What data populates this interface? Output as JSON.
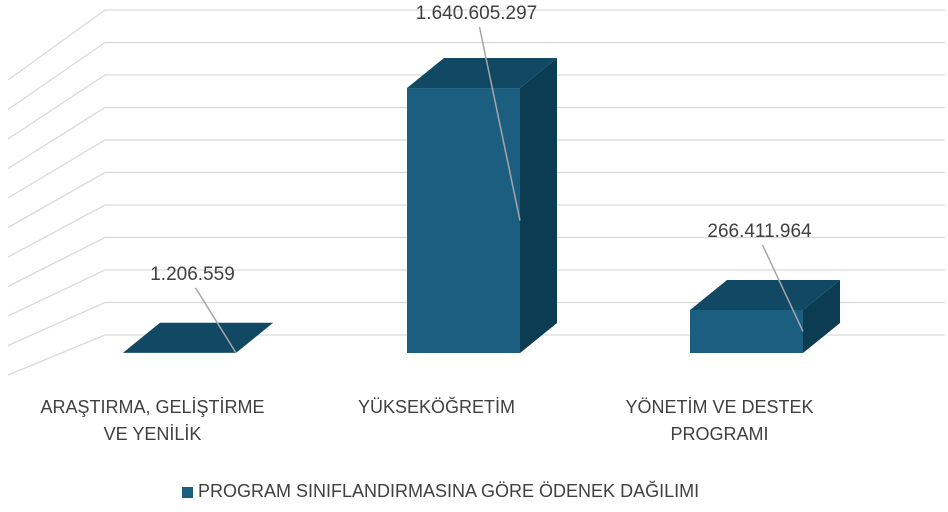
{
  "chart_data": {
    "type": "bar3d",
    "categories": [
      "ARAŞTIRMA, GELİŞTİRME VE YENİLİK",
      "YÜKSEKÖĞRETİM",
      "YÖNETİM VE DESTEK PROGRAMI"
    ],
    "series": [
      {
        "name": "PROGRAM SINIFLANDIRMASINA GÖRE ÖDENEK DAĞILIMI",
        "color": "#1b5e80",
        "values": [
          1206559,
          1640605297,
          266411964
        ],
        "value_labels": [
          "1.206.559",
          "1.640.605.297",
          "266.411.964"
        ]
      }
    ],
    "ylim": [
      0,
      2000000000
    ],
    "yticks": [
      0,
      200000000,
      400000000,
      600000000,
      800000000,
      1000000000,
      1200000000,
      1400000000,
      1600000000,
      1800000000,
      2000000000
    ],
    "grid": true,
    "legend": "bottom"
  }
}
